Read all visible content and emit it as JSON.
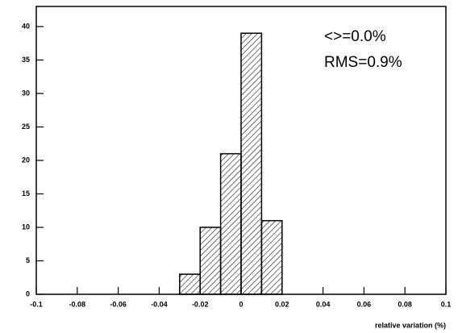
{
  "chart_data": {
    "type": "histogram",
    "bins": [
      -0.03,
      -0.02,
      -0.01,
      0,
      0.01,
      0.02
    ],
    "values": [
      3,
      10,
      21,
      39,
      11
    ],
    "xlim": [
      -0.1,
      0.1
    ],
    "xticks": [
      -0.1,
      -0.08,
      -0.06,
      -0.04,
      -0.02,
      0,
      0.02,
      0.04,
      0.06,
      0.08,
      0.1
    ],
    "ylim": [
      0,
      43
    ],
    "yticks": [
      0,
      5,
      10,
      15,
      20,
      25,
      30,
      35,
      40
    ],
    "x_label": "relative variation (%)",
    "annotations": [
      "<>=0.0%",
      "RMS=0.9%"
    ],
    "color": "#000000",
    "grid": false
  }
}
